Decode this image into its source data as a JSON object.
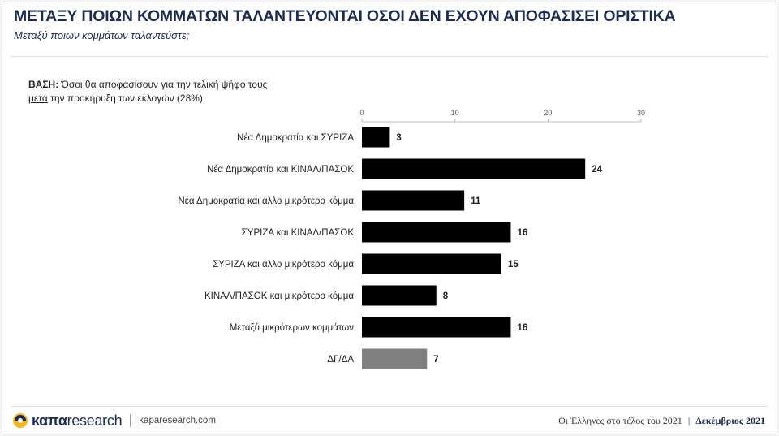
{
  "header": {
    "title": "ΜΕΤΑΞΥ ΠΟΙΩΝ ΚΟΜΜΑΤΩΝ ΤΑΛΑΝΤΕΥΟΝΤΑΙ ΟΣΟΙ ΔΕΝ ΕΧΟΥΝ ΑΠΟΦΑΣΙΣΕΙ ΟΡΙΣΤΙΚΑ",
    "subtitle": "Μεταξύ ποιων κομμάτων ταλαντεύστε;"
  },
  "base_note": {
    "label": "ΒΑΣΗ:",
    "line1_rest": "Όσοι θα αποφασίσουν για την τελική ψήφο τους",
    "line2_underlined": "μετά",
    "line2_rest": "την προκήρυξη των εκλογών (28%)"
  },
  "chart_data": {
    "type": "bar",
    "orientation": "horizontal",
    "categories": [
      "Νέα Δημοκρατία και ΣΥΡΙΖΑ",
      "Νέα Δημοκρατία και ΚΙΝΑΛ/ΠΑΣΟΚ",
      "Νέα Δημοκρατία και άλλο μικρότερο κόμμα",
      "ΣΥΡΙΖΑ και ΚΙΝΑΛ/ΠΑΣΟΚ",
      "ΣΥΡΙΖΑ και άλλο μικρότερο κόμμα",
      "ΚΙΝΑΛ/ΠΑΣΟΚ και μικρότερο κόμμα",
      "Μεταξύ μικρότερων κομμάτων",
      "ΔΓ/ΔΑ"
    ],
    "values": [
      3,
      24,
      11,
      16,
      15,
      8,
      16,
      7
    ],
    "bar_colors": [
      "#000000",
      "#000000",
      "#000000",
      "#000000",
      "#000000",
      "#000000",
      "#000000",
      "#808080"
    ],
    "xlim": [
      0,
      30
    ],
    "xticks": [
      0,
      10,
      20,
      30
    ],
    "axis_position": "top",
    "grid": false,
    "data_labels": true
  },
  "footer": {
    "brand_bold": "καπα",
    "brand_rest": "research",
    "url": "kaparesearch.com",
    "report": "Οι Έλληνες στο τέλος του 2021",
    "separator": "|",
    "date": "Δεκέμβριος 2021"
  }
}
